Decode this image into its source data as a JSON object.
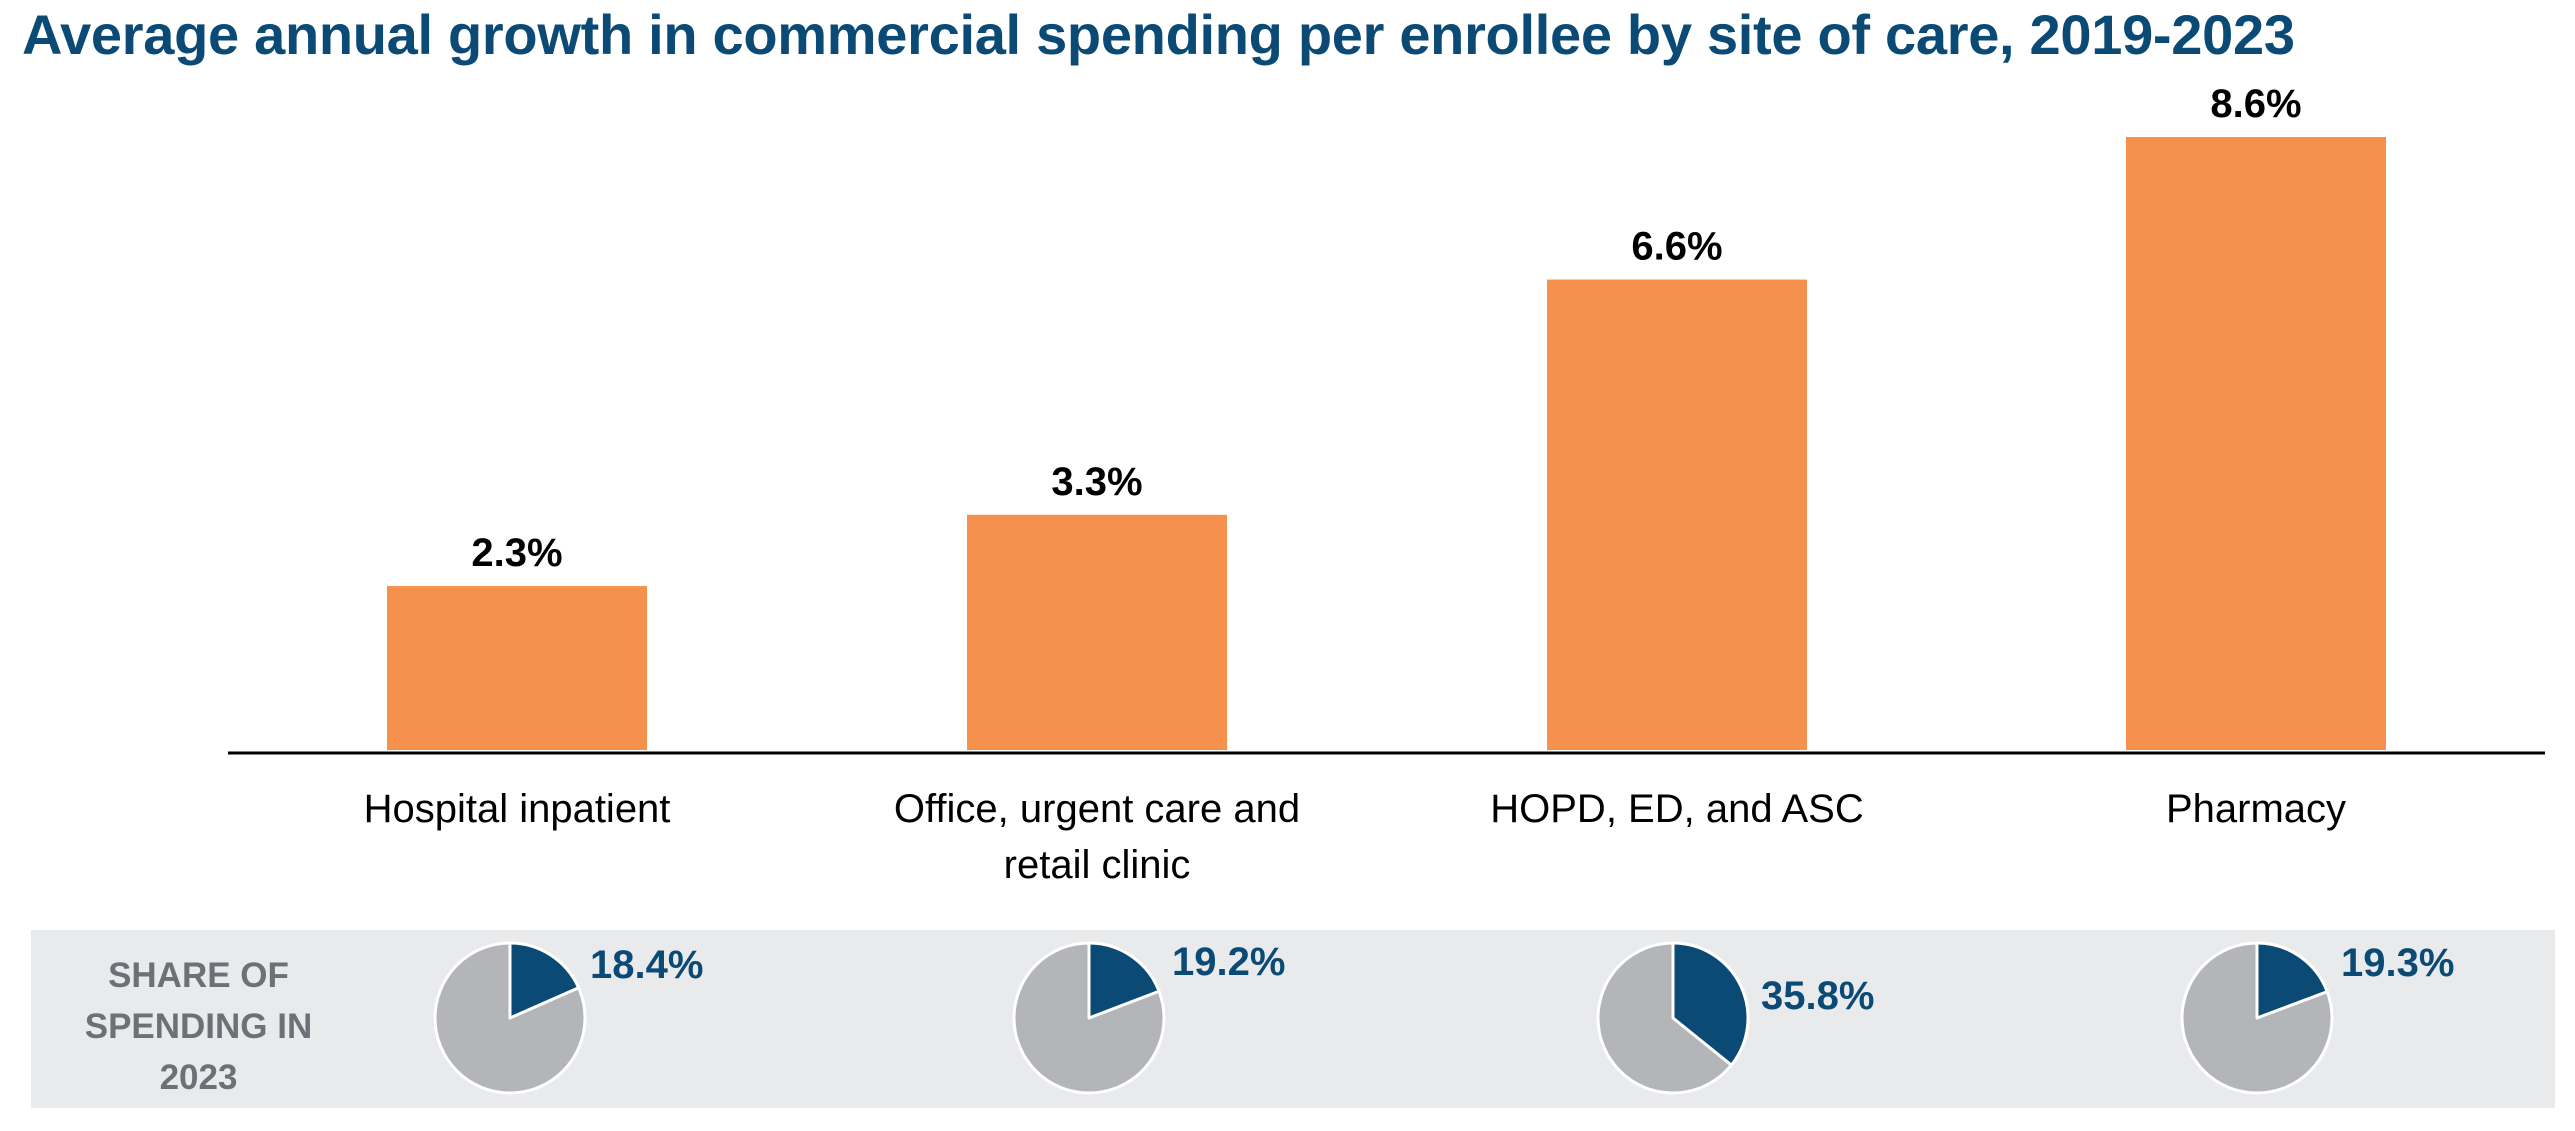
{
  "chart_data": {
    "type": "bar",
    "title": "Average annual growth in commercial spending per enrollee by site of care, 2019-2023",
    "categories": [
      [
        "Hospital inpatient"
      ],
      [
        "Office, urgent care and",
        "retail clinic"
      ],
      [
        "HOPD, ED, and ASC"
      ],
      [
        "Pharmacy"
      ]
    ],
    "values": [
      2.3,
      3.3,
      6.6,
      8.6
    ],
    "value_labels": [
      "2.3%",
      "3.3%",
      "6.6%",
      "8.6%"
    ],
    "ylim": [
      0,
      9.4
    ],
    "grid": false,
    "bar_color": "#f5914d",
    "axis_color": "#000000"
  },
  "share_panel": {
    "heading_lines": [
      "SHARE OF",
      "SPENDING IN",
      "2023"
    ],
    "shares": [
      18.4,
      19.2,
      35.8,
      19.3
    ],
    "share_labels": [
      "18.4%",
      "19.2%",
      "35.8%",
      "19.3%"
    ],
    "highlight_color": "#0b4a75",
    "rest_color": "#b4b5b9"
  }
}
